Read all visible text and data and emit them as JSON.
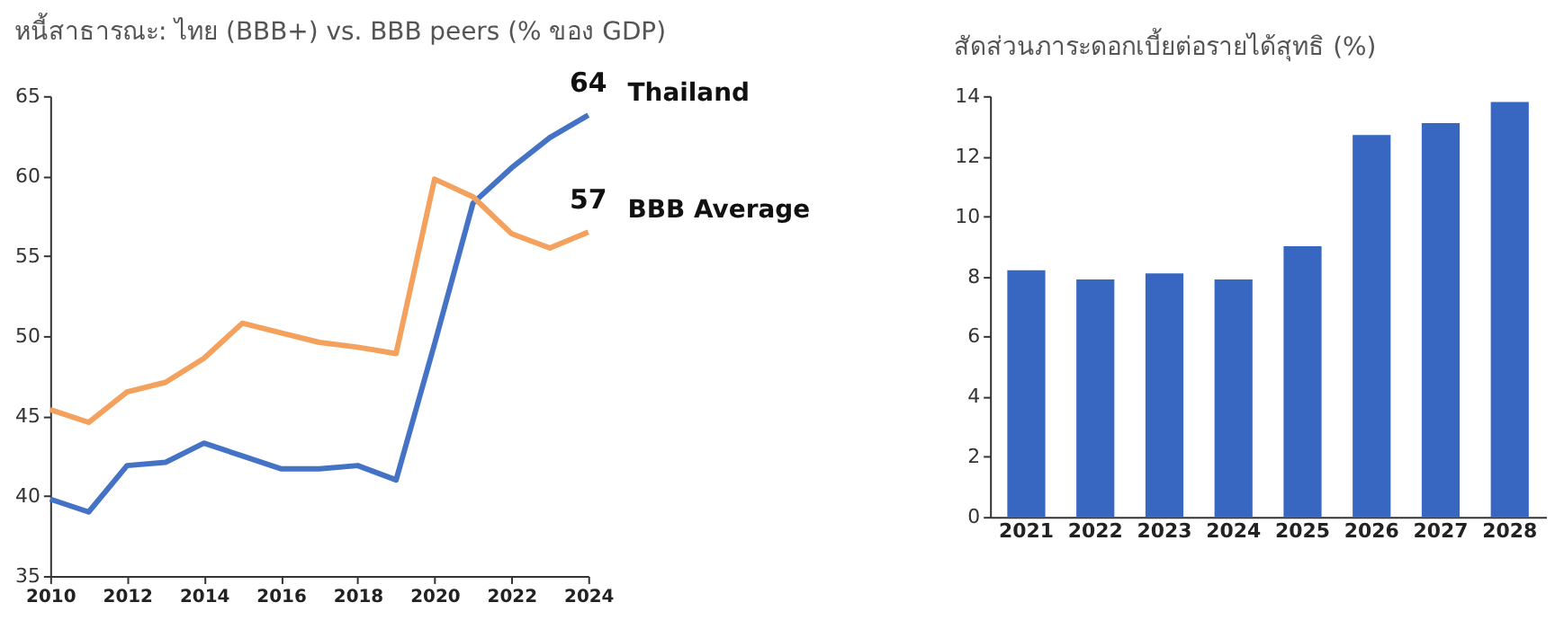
{
  "chart_data": [
    {
      "type": "line",
      "title": "หนี้สาธารณะ: ไทย (BBB+) vs. BBB peers (% ของ GDP)",
      "x": [
        2010,
        2011,
        2012,
        2013,
        2014,
        2015,
        2016,
        2017,
        2018,
        2019,
        2020,
        2021,
        2022,
        2023,
        2024
      ],
      "xlim": [
        2010,
        2024
      ],
      "xticks": [
        2010,
        2012,
        2014,
        2016,
        2018,
        2020,
        2022,
        2024
      ],
      "ylim": [
        35,
        65
      ],
      "yticks": [
        35,
        40,
        45,
        50,
        55,
        60,
        65
      ],
      "grid": false,
      "legend": false,
      "marker": "none",
      "line_style": "solid",
      "series": [
        {
          "name": "Thailand",
          "color": "#4472c4",
          "values": [
            39.8,
            39.0,
            41.9,
            42.1,
            43.3,
            42.5,
            41.7,
            41.7,
            41.9,
            41.0,
            49.5,
            58.3,
            60.5,
            62.4,
            63.8
          ],
          "value_labels": [
            null,
            null,
            null,
            null,
            null,
            null,
            null,
            null,
            null,
            null,
            null,
            null,
            null,
            null,
            "64"
          ]
        },
        {
          "name": "BBB Average",
          "color": "#f4a15d",
          "values": [
            45.4,
            44.6,
            46.5,
            47.1,
            48.6,
            50.8,
            50.2,
            49.6,
            49.3,
            48.9,
            59.8,
            58.7,
            56.4,
            55.5,
            56.5
          ],
          "value_labels": [
            null,
            null,
            null,
            null,
            null,
            null,
            null,
            null,
            null,
            null,
            null,
            null,
            null,
            null,
            "57"
          ]
        }
      ]
    },
    {
      "type": "bar",
      "title": "สัดส่วนภาระดอกเบี้ยต่อรายได้สุทธิ (%)",
      "categories": [
        "2021",
        "2022",
        "2023",
        "2024",
        "2025",
        "2026",
        "2027",
        "2028"
      ],
      "values": [
        8.2,
        7.9,
        8.1,
        7.9,
        9.0,
        12.7,
        13.1,
        13.8
      ],
      "color": "#3867c2",
      "ylim": [
        0,
        14
      ],
      "yticks": [
        0,
        2,
        4,
        6,
        8,
        10,
        12,
        14
      ],
      "grid": false
    }
  ]
}
